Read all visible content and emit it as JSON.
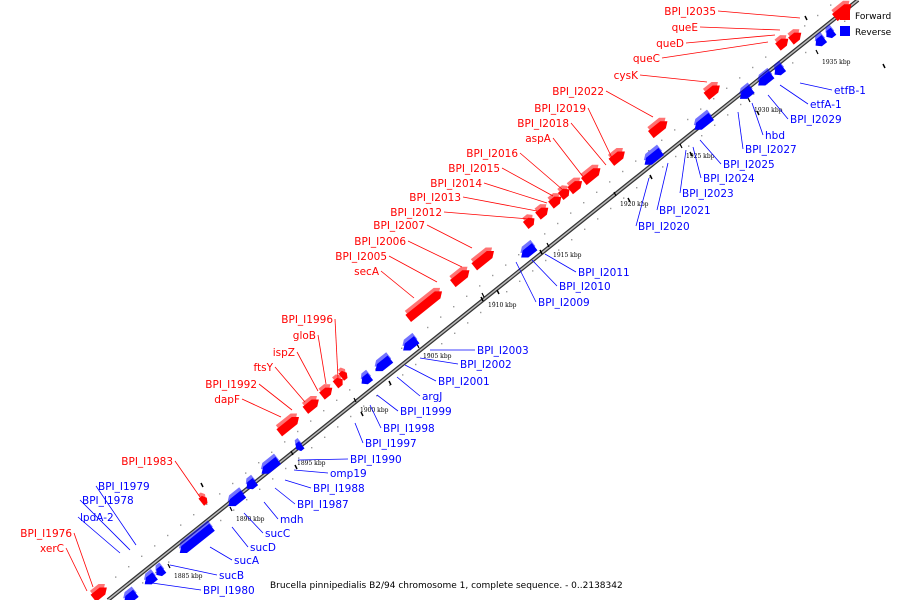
{
  "caption": "Brucella pinnipedialis B2/94 chromosome 1, complete sequence. - 0..2138342",
  "legend": [
    {
      "label": "Forward",
      "color": "#ff0000"
    },
    {
      "label": "Reverse",
      "color": "#0000ff"
    }
  ],
  "colors": {
    "forward": "#ff0000",
    "reverse": "#0000ff",
    "backbone": "#888888"
  },
  "ticks": [
    "1885 kbp",
    "1890 kbp",
    "1895 kbp",
    "1900 kbp",
    "1905 kbp",
    "1910 kbp",
    "1915 kbp",
    "1920 kbp",
    "1925 kbp",
    "1930 kbp",
    "1935 kbp"
  ],
  "forward_genes": [
    "xerC",
    "BPI_I1976",
    "BPI_I1983",
    "dapF",
    "BPI_I1992",
    "ftsY",
    "ispZ",
    "gloB",
    "BPI_I1996",
    "secA",
    "BPI_I2005",
    "BPI_I2006",
    "BPI_I2007",
    "BPI_I2012",
    "BPI_I2013",
    "BPI_I2014",
    "BPI_I2015",
    "BPI_I2016",
    "aspA",
    "BPI_I2018",
    "BPI_I2019",
    "BPI_I2022",
    "cysK",
    "queC",
    "queD",
    "queE",
    "BPI_I2035"
  ],
  "reverse_genes": [
    "lpdA-2",
    "BPI_I1978",
    "BPI_I1979",
    "BPI_I1980",
    "sucB",
    "sucA",
    "sucD",
    "sucC",
    "mdh",
    "BPI_I1987",
    "BPI_I1988",
    "omp19",
    "BPI_I1990",
    "BPI_I1997",
    "BPI_I1998",
    "BPI_I1999",
    "argJ",
    "BPI_I2001",
    "BPI_I2002",
    "BPI_I2003",
    "BPI_I2009",
    "BPI_I2010",
    "BPI_I2011",
    "BPI_I2020",
    "BPI_I2021",
    "BPI_I2023",
    "BPI_I2024",
    "BPI_I2025",
    "BPI_I2027",
    "hbd",
    "BPI_I2029",
    "etfA-1",
    "etfB-1"
  ]
}
